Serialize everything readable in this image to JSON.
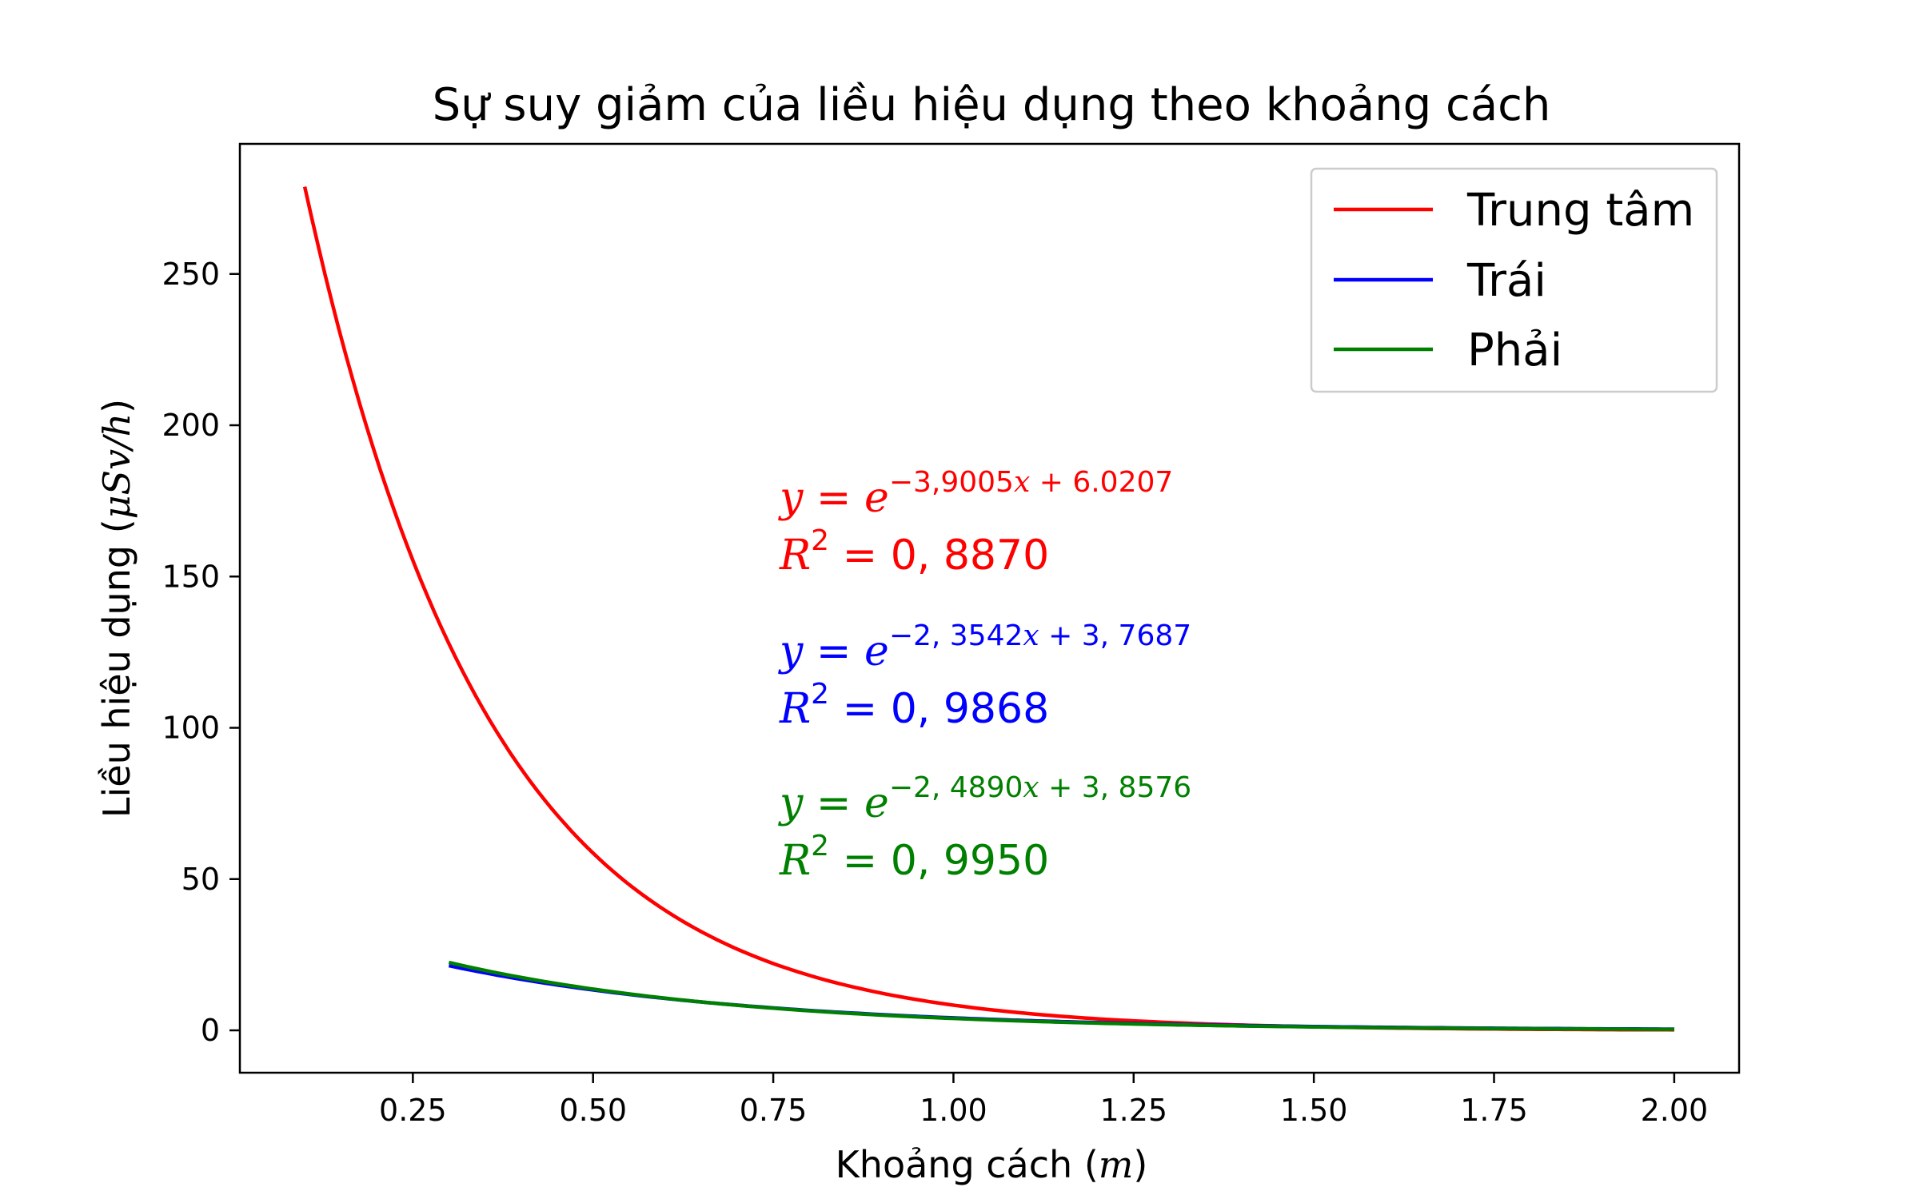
{
  "chart_data": {
    "type": "line",
    "title": "Sự suy giảm của liều hiệu dụng theo khoảng cách",
    "xlabel": "Khoảng cách",
    "xunit": "m",
    "ylabel": "Liều hiệu dụng",
    "yunit": "μSv/h",
    "xlim": [
      0.01,
      2.09
    ],
    "ylim": [
      -14,
      293
    ],
    "xticks": [
      "0.25",
      "0.50",
      "0.75",
      "1.00",
      "1.25",
      "1.50",
      "1.75",
      "2.00"
    ],
    "xtick_values": [
      0.25,
      0.5,
      0.75,
      1.0,
      1.25,
      1.5,
      1.75,
      2.0
    ],
    "yticks": [
      "0",
      "50",
      "100",
      "150",
      "200",
      "250"
    ],
    "ytick_values": [
      0,
      50,
      100,
      150,
      200,
      250
    ],
    "grid": false,
    "legend_position": "top-right",
    "series": [
      {
        "name": "Trung tâm",
        "color": "#ff0000",
        "fit": {
          "a": -3.9005,
          "b": 6.0207
        },
        "x": [
          0.1,
          0.2,
          0.3,
          0.4,
          0.5,
          0.6,
          0.7,
          0.8,
          0.9,
          1.0,
          1.1,
          1.2,
          1.3,
          1.4,
          1.5,
          1.6,
          1.7,
          1.8,
          1.9,
          2.0
        ],
        "y": [
          278.1,
          188.6,
          127.9,
          86.7,
          58.8,
          39.9,
          27.0,
          18.3,
          12.4,
          8.4,
          5.7,
          3.9,
          2.6,
          1.8,
          1.2,
          0.8,
          0.6,
          0.4,
          0.3,
          0.2
        ]
      },
      {
        "name": "Trái",
        "color": "#0000ff",
        "fit": {
          "a": -2.3542,
          "b": 3.7687
        },
        "x": [
          0.3,
          0.4,
          0.5,
          0.6,
          0.7,
          0.8,
          0.9,
          1.0,
          1.1,
          1.2,
          1.3,
          1.4,
          1.5,
          1.6,
          1.7,
          1.8,
          1.9,
          2.0
        ],
        "y": [
          21.5,
          17.0,
          13.4,
          10.6,
          8.4,
          6.6,
          5.2,
          4.1,
          3.3,
          2.6,
          2.0,
          1.6,
          1.3,
          1.0,
          0.8,
          0.6,
          0.5,
          0.4
        ]
      },
      {
        "name": "Phải",
        "color": "#008000",
        "fit": {
          "a": -2.489,
          "b": 3.8576
        },
        "x": [
          0.3,
          0.4,
          0.5,
          0.6,
          0.7,
          0.8,
          0.9,
          1.0,
          1.1,
          1.2,
          1.3,
          1.4,
          1.5,
          1.6,
          1.7,
          1.8,
          1.9,
          2.0
        ],
        "y": [
          22.3,
          17.4,
          13.6,
          10.6,
          8.3,
          6.4,
          5.0,
          3.9,
          3.1,
          2.4,
          1.9,
          1.5,
          1.1,
          0.9,
          0.7,
          0.5,
          0.4,
          0.3
        ]
      }
    ],
    "annotations": [
      {
        "color": "#ff0000",
        "y_eq": "y",
        "eq_sign": " = ",
        "base": "e",
        "exponent_a": "−3,9005",
        "exponent_x": "x",
        "exponent_rest": " + 6.0207",
        "r2_label": "R",
        "r2_power": "2",
        "r2_value": " = 0, 8870"
      },
      {
        "color": "#0000ff",
        "y_eq": "y",
        "eq_sign": " = ",
        "base": "e",
        "exponent_a": "−2, 3542",
        "exponent_x": "x",
        "exponent_rest": " + 3, 7687",
        "r2_label": "R",
        "r2_power": "2",
        "r2_value": " = 0, 9868"
      },
      {
        "color": "#008000",
        "y_eq": "y",
        "eq_sign": " = ",
        "base": "e",
        "exponent_a": "−2, 4890",
        "exponent_x": "x",
        "exponent_rest": " + 3, 8576",
        "r2_label": "R",
        "r2_power": "2",
        "r2_value": " = 0, 9950"
      }
    ]
  }
}
